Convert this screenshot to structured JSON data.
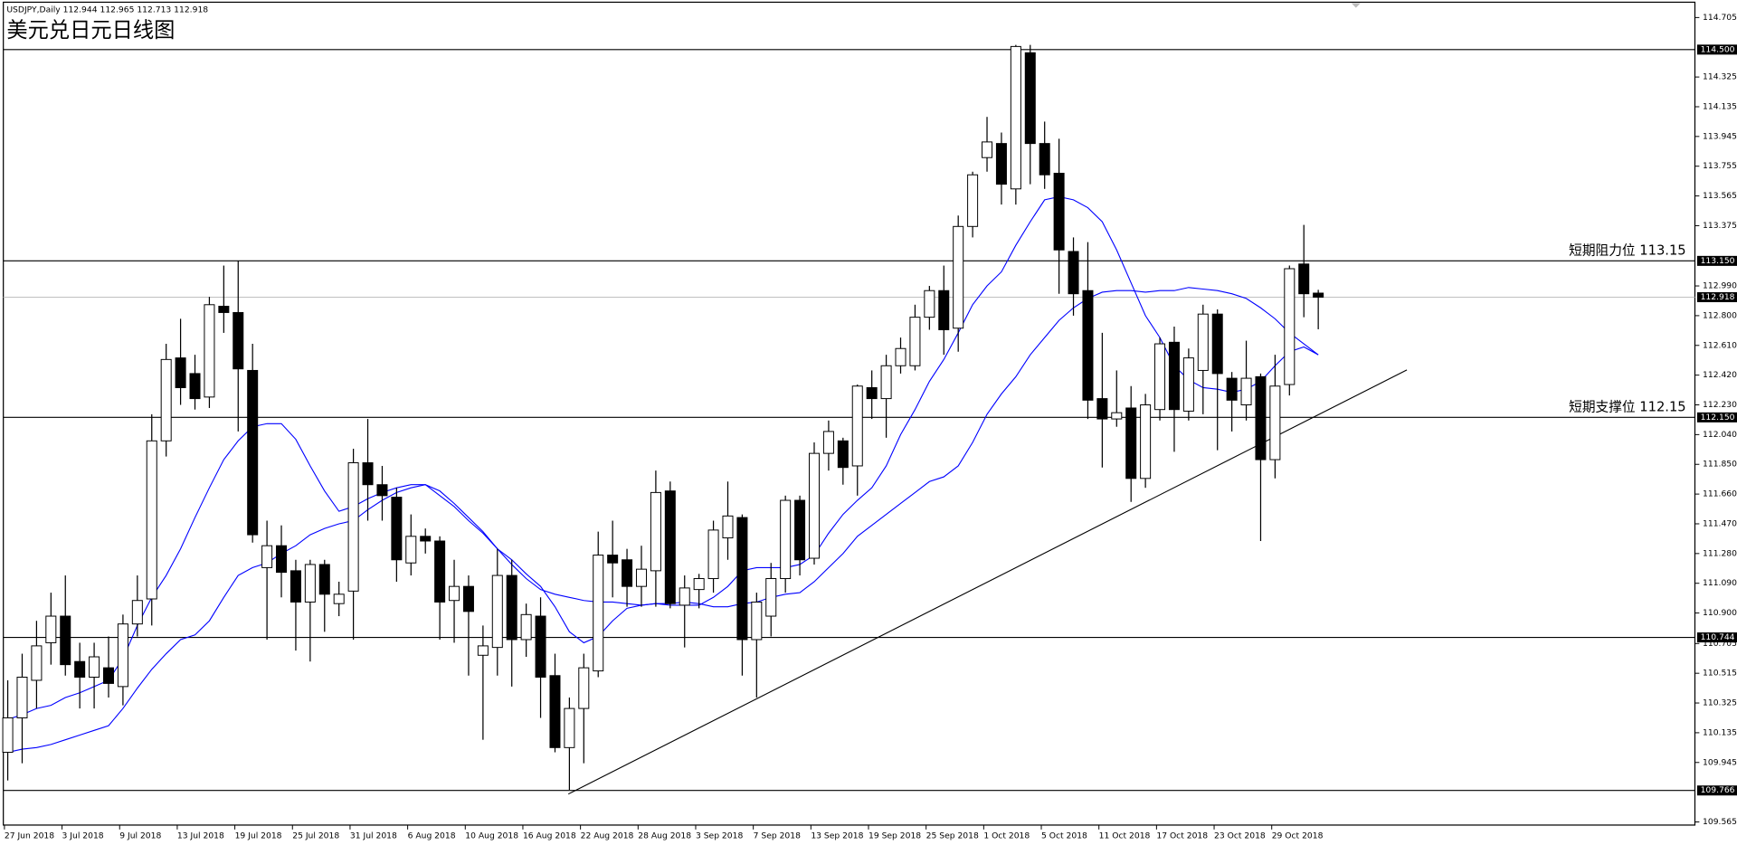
{
  "chart_data": {
    "type": "candlestick",
    "header": "USDJPY,Daily  112.944 112.965 112.713 112.918",
    "title": "美元兑日元日线图",
    "categories": [
      "27 Jun 2018",
      null,
      null,
      null,
      "3 Jul 2018",
      null,
      null,
      null,
      "9 Jul 2018",
      null,
      null,
      null,
      "13 Jul 2018",
      null,
      null,
      null,
      "19 Jul 2018",
      null,
      null,
      null,
      "25 Jul 2018",
      null,
      null,
      null,
      "31 Jul 2018",
      null,
      null,
      null,
      "6 Aug 2018",
      null,
      null,
      null,
      "10 Aug 2018",
      null,
      null,
      null,
      "16 Aug 2018",
      null,
      null,
      null,
      "22 Aug 2018",
      null,
      null,
      null,
      "28 Aug 2018",
      null,
      null,
      null,
      "3 Sep 2018",
      null,
      null,
      null,
      "7 Sep 2018",
      null,
      null,
      null,
      "13 Sep 2018",
      null,
      null,
      null,
      "19 Sep 2018",
      null,
      null,
      null,
      "25 Sep 2018",
      null,
      null,
      null,
      "1 Oct 2018",
      null,
      null,
      null,
      "5 Oct 2018",
      null,
      null,
      null,
      "11 Oct 2018",
      null,
      null,
      null,
      "17 Oct 2018",
      null,
      null,
      null,
      "23 Oct 2018",
      null,
      null,
      null,
      "29 Oct 2018",
      null,
      null,
      null
    ],
    "open": [
      110.01,
      110.23,
      110.47,
      110.71,
      110.88,
      110.59,
      110.49,
      110.55,
      110.43,
      110.83,
      110.99,
      112.0,
      112.53,
      112.43,
      112.28,
      112.86,
      112.82,
      112.45,
      111.19,
      111.33,
      111.17,
      110.97,
      111.21,
      110.96,
      111.04,
      111.86,
      111.72,
      111.64,
      111.22,
      111.39,
      111.36,
      110.98,
      111.07,
      110.63,
      110.68,
      111.14,
      110.73,
      110.88,
      110.5,
      110.04,
      110.29,
      110.53,
      111.27,
      111.24,
      111.07,
      111.17,
      111.68,
      110.95,
      111.05,
      111.12,
      111.38,
      111.51,
      110.73,
      110.88,
      111.12,
      111.62,
      111.25,
      111.92,
      112.0,
      111.84,
      112.34,
      112.27,
      112.48,
      112.48,
      112.79,
      112.96,
      112.72,
      113.37,
      113.81,
      113.9,
      113.61,
      114.48,
      113.9,
      113.71,
      113.21,
      112.96,
      112.27,
      112.14,
      112.21,
      111.76,
      112.2,
      112.63,
      112.19,
      112.45,
      112.81,
      112.4,
      112.23,
      112.41,
      111.88,
      112.36,
      113.13,
      112.944
    ],
    "high": [
      110.47,
      110.64,
      110.85,
      111.03,
      111.14,
      110.71,
      110.71,
      110.75,
      110.89,
      111.14,
      112.17,
      112.62,
      112.78,
      112.55,
      112.92,
      113.12,
      113.15,
      112.62,
      111.49,
      111.46,
      111.24,
      111.24,
      111.24,
      111.1,
      111.95,
      112.14,
      111.84,
      111.7,
      111.53,
      111.44,
      111.39,
      111.24,
      111.14,
      110.82,
      111.31,
      111.24,
      110.96,
      111.0,
      110.64,
      110.36,
      110.64,
      111.42,
      111.49,
      111.31,
      111.33,
      111.81,
      111.74,
      111.14,
      111.15,
      111.49,
      111.74,
      111.53,
      111.03,
      111.22,
      111.65,
      111.65,
      111.99,
      112.13,
      112.02,
      112.36,
      112.45,
      112.55,
      112.66,
      112.87,
      112.99,
      113.12,
      113.44,
      113.72,
      114.07,
      113.97,
      114.53,
      114.53,
      114.04,
      113.93,
      113.3,
      113.27,
      112.69,
      112.45,
      112.35,
      112.3,
      112.66,
      112.73,
      112.59,
      112.87,
      112.84,
      112.44,
      112.64,
      112.43,
      112.55,
      113.12,
      113.38,
      112.965
    ],
    "low": [
      109.83,
      109.94,
      110.29,
      110.57,
      110.5,
      110.29,
      110.29,
      110.36,
      110.31,
      110.75,
      110.82,
      111.9,
      112.23,
      112.2,
      112.21,
      112.69,
      112.06,
      111.35,
      110.73,
      111.0,
      110.66,
      110.59,
      110.78,
      110.88,
      110.73,
      111.49,
      111.49,
      111.1,
      111.14,
      111.28,
      110.73,
      110.71,
      110.5,
      110.09,
      110.5,
      110.43,
      110.62,
      110.23,
      110.01,
      109.77,
      109.94,
      110.49,
      111.0,
      110.94,
      110.94,
      110.94,
      110.93,
      110.68,
      110.93,
      111.03,
      111.24,
      110.5,
      110.36,
      110.75,
      111.03,
      111.14,
      111.21,
      111.81,
      111.72,
      111.65,
      112.14,
      112.02,
      112.43,
      112.45,
      112.71,
      112.55,
      112.57,
      113.3,
      113.72,
      113.51,
      113.51,
      113.64,
      113.61,
      112.94,
      112.8,
      112.14,
      111.83,
      112.09,
      111.61,
      111.7,
      112.13,
      111.93,
      112.13,
      112.17,
      111.94,
      112.06,
      112.13,
      111.36,
      111.76,
      112.29,
      112.79,
      112.713
    ],
    "close": [
      110.23,
      110.49,
      110.69,
      110.88,
      110.57,
      110.49,
      110.62,
      110.45,
      110.83,
      110.98,
      112.0,
      112.52,
      112.34,
      112.27,
      112.87,
      112.82,
      112.46,
      111.4,
      111.33,
      111.16,
      110.97,
      111.21,
      111.02,
      111.02,
      111.86,
      111.72,
      111.65,
      111.24,
      111.39,
      111.36,
      110.97,
      111.07,
      110.91,
      110.69,
      111.14,
      110.73,
      110.89,
      110.49,
      110.04,
      110.29,
      110.55,
      111.27,
      111.22,
      111.07,
      111.18,
      111.67,
      110.96,
      111.06,
      111.12,
      111.43,
      111.52,
      110.73,
      110.97,
      111.12,
      111.62,
      111.24,
      111.92,
      112.06,
      111.83,
      112.35,
      112.27,
      112.48,
      112.59,
      112.79,
      112.96,
      112.71,
      113.37,
      113.7,
      113.91,
      113.64,
      114.52,
      113.9,
      113.7,
      113.22,
      112.94,
      112.26,
      112.14,
      112.18,
      111.76,
      112.23,
      112.62,
      112.2,
      112.53,
      112.81,
      112.43,
      112.26,
      112.4,
      111.88,
      112.35,
      113.1,
      112.94,
      112.918
    ],
    "up_color": "#ffffff",
    "down_color": "#000000",
    "moving_averages": [
      {
        "color": "#0000ff",
        "values": [
          110.22,
          110.25,
          110.29,
          110.31,
          110.36,
          110.39,
          110.43,
          110.47,
          110.61,
          110.82,
          111.0,
          111.14,
          111.31,
          111.51,
          111.7,
          111.88,
          112.0,
          112.09,
          112.11,
          112.11,
          112.01,
          111.84,
          111.68,
          111.55,
          111.58,
          111.63,
          111.67,
          111.7,
          111.72,
          111.72,
          111.65,
          111.58,
          111.49,
          111.41,
          111.31,
          111.24,
          111.15,
          111.07,
          110.94,
          110.78,
          110.71,
          110.75,
          110.85,
          110.93,
          110.95,
          110.96,
          110.95,
          110.95,
          110.95,
          111.0,
          111.07,
          111.17,
          111.19,
          111.19,
          111.19,
          111.21,
          111.27,
          111.41,
          111.53,
          111.62,
          111.7,
          111.84,
          112.04,
          112.2,
          112.38,
          112.52,
          112.69,
          112.87,
          112.99,
          113.08,
          113.25,
          113.4,
          113.54,
          113.56,
          113.54,
          113.49,
          113.4,
          113.22,
          113.01,
          112.8,
          112.66,
          112.48,
          112.39,
          112.34,
          112.33,
          112.31,
          112.33,
          112.38,
          112.48,
          112.57,
          112.6,
          112.55
        ]
      },
      {
        "color": "#0000ff",
        "values": [
          110.01,
          110.03,
          110.04,
          110.06,
          110.09,
          110.12,
          110.15,
          110.18,
          110.29,
          110.42,
          110.54,
          110.64,
          110.73,
          110.76,
          110.85,
          111.0,
          111.14,
          111.19,
          111.22,
          111.28,
          111.33,
          111.4,
          111.44,
          111.47,
          111.49,
          111.56,
          111.62,
          111.67,
          111.7,
          111.72,
          111.68,
          111.6,
          111.51,
          111.42,
          111.31,
          111.21,
          111.12,
          111.05,
          111.02,
          111.0,
          110.98,
          110.97,
          110.97,
          110.96,
          110.95,
          110.96,
          110.96,
          110.97,
          110.96,
          110.94,
          110.94,
          110.96,
          110.97,
          111.0,
          111.02,
          111.03,
          111.1,
          111.19,
          111.28,
          111.39,
          111.46,
          111.53,
          111.6,
          111.67,
          111.74,
          111.77,
          111.84,
          111.99,
          112.17,
          112.3,
          112.41,
          112.55,
          112.66,
          112.77,
          112.85,
          112.91,
          112.95,
          112.96,
          112.96,
          112.95,
          112.96,
          112.96,
          112.98,
          112.97,
          112.96,
          112.94,
          112.91,
          112.85,
          112.78,
          112.69,
          112.62,
          112.55
        ]
      }
    ],
    "levels": [
      {
        "value": 114.5,
        "label": "114.500",
        "color": "#000000"
      },
      {
        "value": 113.15,
        "label": "113.150",
        "color": "#000000",
        "annotation": "短期阻力位 113.15"
      },
      {
        "value": 112.918,
        "label": "112.918",
        "color": "#c0c0c0"
      },
      {
        "value": 112.15,
        "label": "112.150",
        "color": "#000000",
        "annotation": "短期支撑位 112.15"
      },
      {
        "value": 110.744,
        "label": "110.744",
        "color": "#000000"
      },
      {
        "value": 109.766,
        "label": "109.766",
        "color": "#000000"
      }
    ],
    "ylim": [
      109.545,
      114.817
    ],
    "yticks": [
      {
        "value": 114.705,
        "label": "114.705"
      },
      {
        "value": 114.325,
        "label": "114.325"
      },
      {
        "value": 114.135,
        "label": "114.135"
      },
      {
        "value": 113.945,
        "label": "113.945"
      },
      {
        "value": 113.755,
        "label": "113.755"
      },
      {
        "value": 113.565,
        "label": "113.565"
      },
      {
        "value": 113.375,
        "label": "113.375"
      },
      {
        "value": 112.99,
        "label": "112.990"
      },
      {
        "value": 112.8,
        "label": "112.800"
      },
      {
        "value": 112.61,
        "label": "112.610"
      },
      {
        "value": 112.42,
        "label": "112.420"
      },
      {
        "value": 112.23,
        "label": "112.230"
      },
      {
        "value": 112.04,
        "label": "112.040"
      },
      {
        "value": 111.85,
        "label": "111.850"
      },
      {
        "value": 111.66,
        "label": "111.660"
      },
      {
        "value": 111.47,
        "label": "111.470"
      },
      {
        "value": 111.28,
        "label": "111.280"
      },
      {
        "value": 111.09,
        "label": "111.090"
      },
      {
        "value": 110.9,
        "label": "110.900"
      },
      {
        "value": 110.705,
        "label": "110.705"
      },
      {
        "value": 110.515,
        "label": "110.515"
      },
      {
        "value": 110.325,
        "label": "110.325"
      },
      {
        "value": 110.135,
        "label": "110.135"
      },
      {
        "value": 109.945,
        "label": "109.945"
      },
      {
        "value": 109.565,
        "label": "109.565"
      }
    ]
  }
}
